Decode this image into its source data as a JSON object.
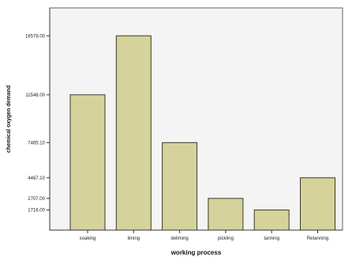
{
  "chart_data": {
    "type": "bar",
    "xlabel": "working process",
    "ylabel": "chemical oxygen demand",
    "categories": [
      "soaking",
      "liming",
      "deliming",
      "pickling",
      "tanning",
      "Retanning"
    ],
    "values": [
      11548.0,
      16578.0,
      7465.1,
      2707.0,
      1716.0,
      4467.1
    ],
    "y_ticks": [
      {
        "value": 1716.0,
        "label": "1716.00"
      },
      {
        "value": 2707.0,
        "label": "2707.00"
      },
      {
        "value": 4467.1,
        "label": "4467.10"
      },
      {
        "value": 7465.1,
        "label": "7465.10"
      },
      {
        "value": 11548.0,
        "label": "11548.00"
      },
      {
        "value": 16578.0,
        "label": "16578.00"
      }
    ],
    "grid": false,
    "legend": "none",
    "colors": {
      "bar_fill": "#d6d29b",
      "bar_stroke": "#3a3a2a",
      "plot_background": "#f4f4f4",
      "frame": "#666666"
    }
  }
}
